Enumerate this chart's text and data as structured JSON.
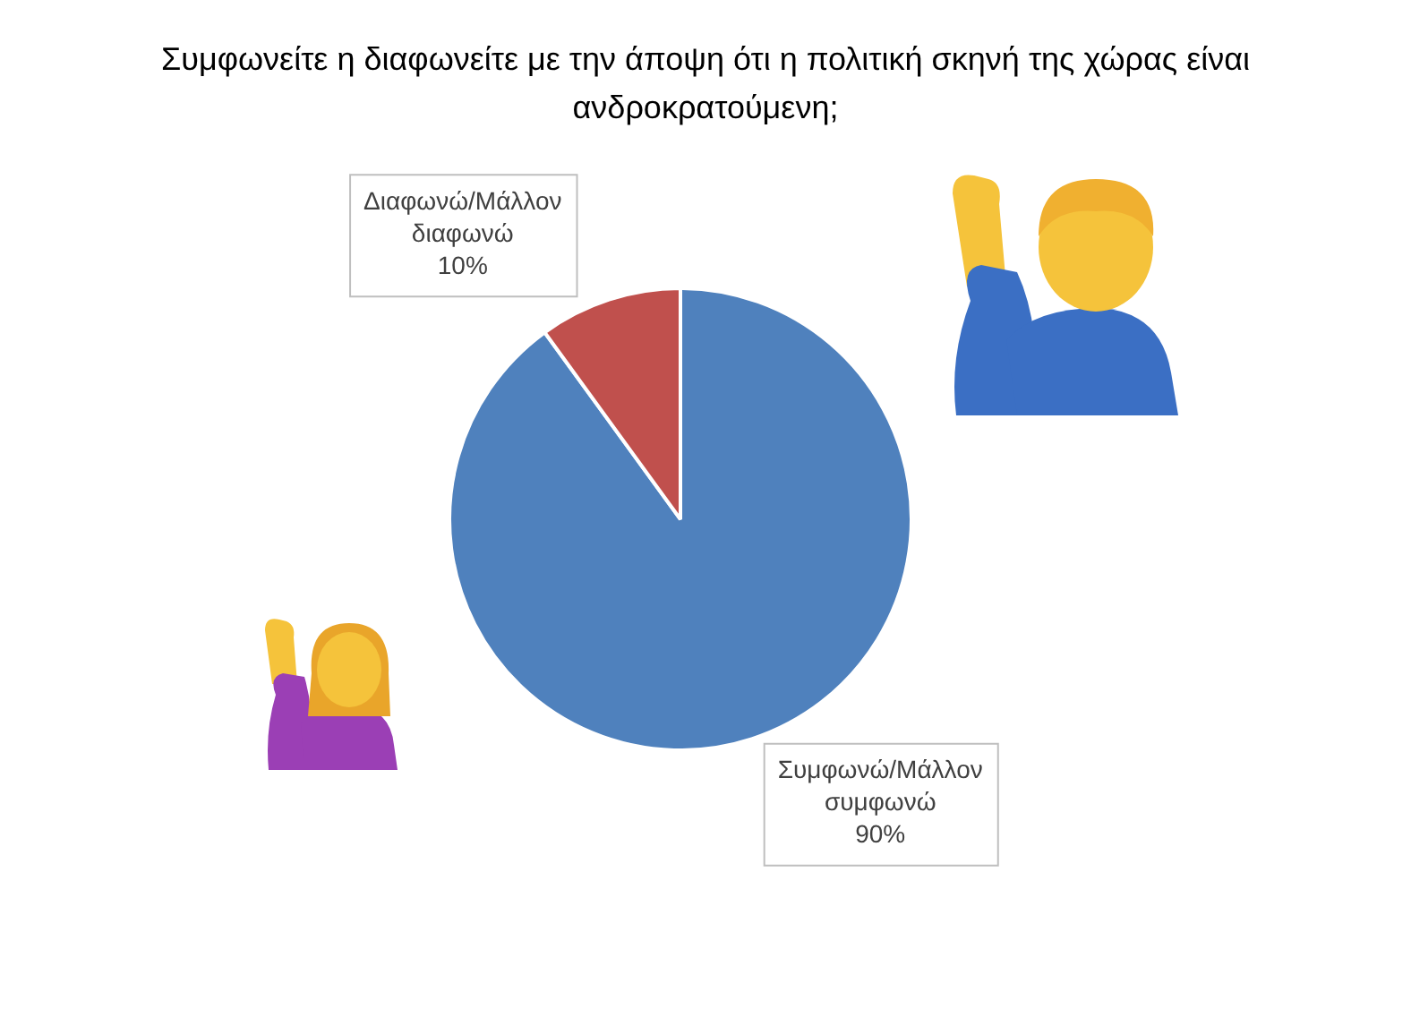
{
  "chart_data": {
    "type": "pie",
    "title": "Συμφωνείτε η διαφωνείτε με την άποψη ότι η πολιτική σκηνή της χώρας είναι ανδροκρατούμενη;",
    "categories": [
      "Συμφωνώ/Μάλλον συμφωνώ",
      "Διαφωνώ/Μάλλον διαφωνώ"
    ],
    "values": [
      90,
      10
    ],
    "colors": [
      "#4f81bd",
      "#c0504d"
    ],
    "value_labels": [
      "90%",
      "10%"
    ],
    "legend": false
  }
}
